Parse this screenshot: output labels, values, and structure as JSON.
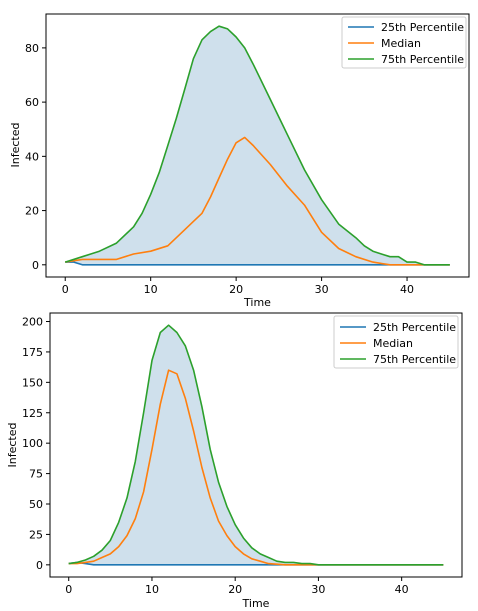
{
  "chart_data": [
    {
      "type": "line",
      "xlabel": "Time",
      "ylabel": "Infected",
      "xlim": [
        -2.25,
        47.25
      ],
      "ylim": [
        -4.5,
        92.5
      ],
      "xticks": [
        0,
        10,
        20,
        30,
        40
      ],
      "yticks": [
        0,
        20,
        40,
        60,
        80
      ],
      "grid": false,
      "legend_position": "top-right",
      "fill_between": {
        "lower": "25th Percentile",
        "upper": "75th Percentile",
        "color": "#cfe0ec"
      },
      "series": [
        {
          "name": "25th Percentile",
          "color": "#1f77b4",
          "x": [
            0,
            1,
            2,
            45
          ],
          "y": [
            1,
            1,
            0,
            0
          ]
        },
        {
          "name": "Median",
          "color": "#ff7f0e",
          "x": [
            0,
            2,
            4,
            6,
            8,
            10,
            12,
            14,
            15,
            16,
            17,
            18,
            19,
            20,
            21,
            22,
            24,
            26,
            28,
            30,
            32,
            34,
            36,
            38,
            40,
            42,
            45
          ],
          "y": [
            1,
            2,
            2,
            2,
            4,
            5,
            7,
            13,
            16,
            19,
            25,
            32,
            39,
            45,
            47,
            44,
            37,
            29,
            22,
            12,
            6,
            3,
            1,
            0,
            0,
            0,
            0
          ]
        },
        {
          "name": "75th Percentile",
          "color": "#2ca02c",
          "x": [
            0,
            2,
            4,
            6,
            8,
            9,
            10,
            11,
            12,
            13,
            14,
            15,
            16,
            17,
            18,
            19,
            20,
            21,
            22,
            24,
            26,
            28,
            30,
            32,
            34,
            35,
            36,
            37,
            38,
            39,
            40,
            41,
            42,
            45
          ],
          "y": [
            1,
            3,
            5,
            8,
            14,
            19,
            26,
            34,
            44,
            54,
            65,
            76,
            83,
            86,
            88,
            87,
            84,
            80,
            74,
            61,
            48,
            35,
            24,
            15,
            10,
            7,
            5,
            4,
            3,
            3,
            1,
            1,
            0,
            0
          ]
        }
      ]
    },
    {
      "type": "line",
      "xlabel": "Time",
      "ylabel": "Infected",
      "xlim": [
        -2.25,
        47.25
      ],
      "ylim": [
        -10,
        207
      ],
      "xticks": [
        0,
        10,
        20,
        30,
        40
      ],
      "yticks": [
        0,
        25,
        50,
        75,
        100,
        125,
        150,
        175,
        200
      ],
      "grid": false,
      "legend_position": "top-right",
      "fill_between": {
        "lower": "25th Percentile",
        "upper": "75th Percentile",
        "color": "#cfe0ec"
      },
      "series": [
        {
          "name": "25th Percentile",
          "color": "#1f77b4",
          "x": [
            0,
            1,
            2,
            3,
            45
          ],
          "y": [
            1,
            2,
            1,
            0,
            0
          ]
        },
        {
          "name": "Median",
          "color": "#ff7f0e",
          "x": [
            0,
            1,
            2,
            3,
            4,
            5,
            6,
            7,
            8,
            9,
            10,
            11,
            12,
            13,
            14,
            15,
            16,
            17,
            18,
            19,
            20,
            21,
            22,
            23,
            24,
            26,
            28,
            30,
            45
          ],
          "y": [
            1,
            1,
            2,
            3,
            6,
            9,
            15,
            24,
            38,
            60,
            95,
            132,
            160,
            157,
            137,
            110,
            80,
            55,
            36,
            24,
            15,
            9,
            5,
            3,
            1,
            0,
            0,
            0,
            0
          ]
        },
        {
          "name": "75th Percentile",
          "color": "#2ca02c",
          "x": [
            0,
            1,
            2,
            3,
            4,
            5,
            6,
            7,
            8,
            9,
            10,
            11,
            12,
            13,
            14,
            15,
            16,
            17,
            18,
            19,
            20,
            21,
            22,
            23,
            24,
            25,
            26,
            27,
            28,
            29,
            30,
            45
          ],
          "y": [
            1,
            2,
            4,
            7,
            12,
            20,
            35,
            55,
            85,
            125,
            168,
            191,
            197,
            191,
            180,
            160,
            130,
            95,
            68,
            48,
            33,
            22,
            14,
            9,
            6,
            3,
            2,
            2,
            1,
            1,
            0,
            0
          ]
        }
      ]
    }
  ]
}
